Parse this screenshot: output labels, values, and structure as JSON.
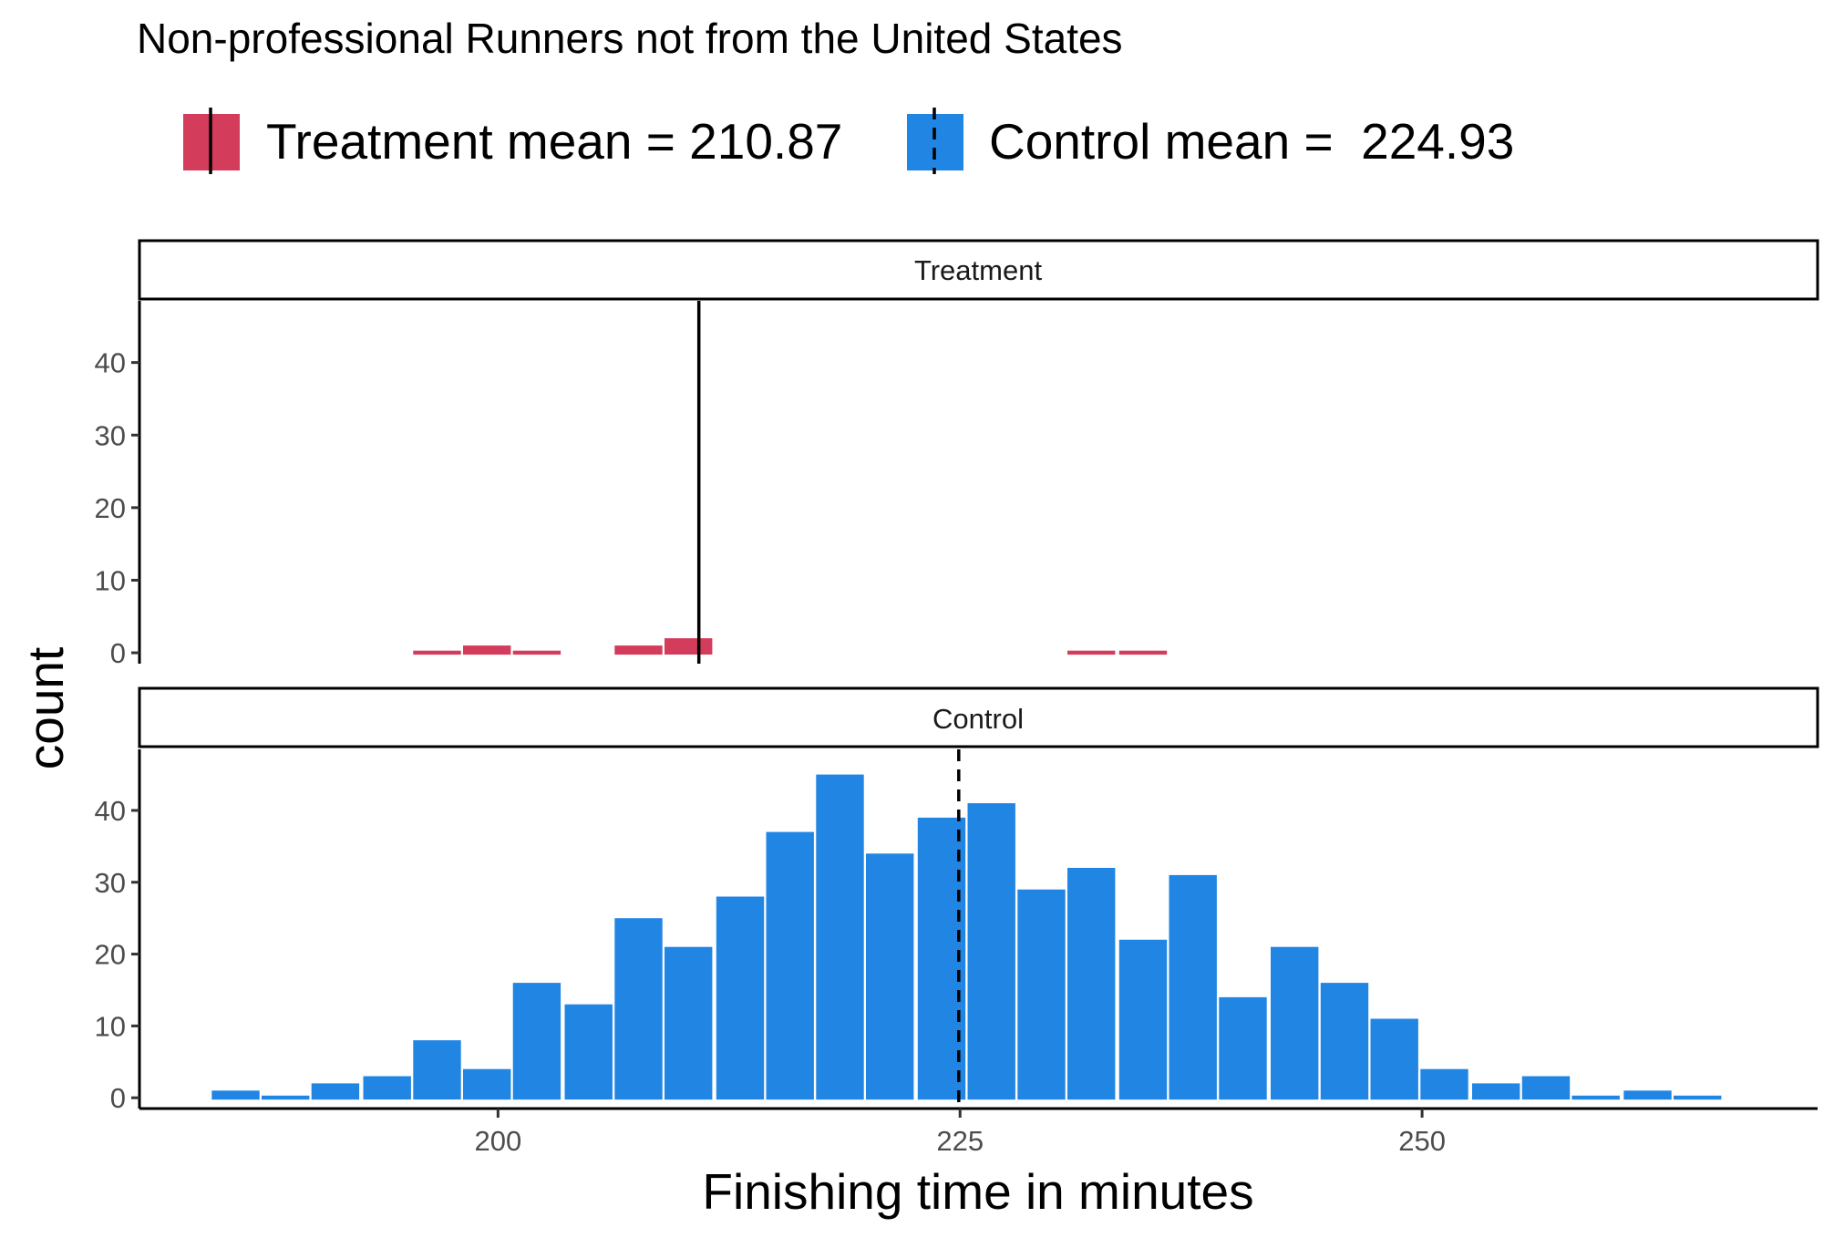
{
  "chart_data": {
    "type": "bar",
    "title": "Non-professional Runners not from the United States",
    "xlabel": "Finishing time in minutes",
    "ylabel": "count",
    "xlim": [
      180.6,
      271.4
    ],
    "ylim": [
      -1.5,
      48.5
    ],
    "x_ticks": [
      200,
      225,
      250
    ],
    "y_ticks": [
      0,
      10,
      20,
      30,
      40
    ],
    "bin_width": 2.73,
    "grid": false,
    "legend_position": "top",
    "legend": [
      {
        "label": "Treatment mean = 210.87",
        "color": "#d43c5c",
        "line": "solid"
      },
      {
        "label": "Control mean =  224.93",
        "color": "#2185e4",
        "line": "dashed"
      }
    ],
    "panels": [
      {
        "name": "Treatment",
        "color": "#d43c5c",
        "mean": 210.87,
        "mean_line": "solid",
        "bins": [
          {
            "x": 196.7,
            "count": 0.3
          },
          {
            "x": 199.4,
            "count": 1
          },
          {
            "x": 202.1,
            "count": 0.3
          },
          {
            "x": 207.6,
            "count": 1
          },
          {
            "x": 210.3,
            "count": 2
          },
          {
            "x": 232.1,
            "count": 0.3
          },
          {
            "x": 234.9,
            "count": 0.3
          }
        ]
      },
      {
        "name": "Control",
        "color": "#2185e4",
        "mean": 224.93,
        "mean_line": "dashed",
        "bins": [
          {
            "x": 185.8,
            "count": 1
          },
          {
            "x": 188.5,
            "count": 0.3
          },
          {
            "x": 191.2,
            "count": 2
          },
          {
            "x": 194.0,
            "count": 3
          },
          {
            "x": 196.7,
            "count": 8
          },
          {
            "x": 199.4,
            "count": 4
          },
          {
            "x": 202.1,
            "count": 16
          },
          {
            "x": 204.9,
            "count": 13
          },
          {
            "x": 207.6,
            "count": 25
          },
          {
            "x": 210.3,
            "count": 21
          },
          {
            "x": 213.1,
            "count": 28
          },
          {
            "x": 215.8,
            "count": 37
          },
          {
            "x": 218.5,
            "count": 45
          },
          {
            "x": 221.2,
            "count": 34
          },
          {
            "x": 224.0,
            "count": 39
          },
          {
            "x": 226.7,
            "count": 41
          },
          {
            "x": 229.4,
            "count": 29
          },
          {
            "x": 232.1,
            "count": 32
          },
          {
            "x": 234.9,
            "count": 22
          },
          {
            "x": 237.6,
            "count": 31
          },
          {
            "x": 240.3,
            "count": 14
          },
          {
            "x": 243.1,
            "count": 21
          },
          {
            "x": 245.8,
            "count": 16
          },
          {
            "x": 248.5,
            "count": 11
          },
          {
            "x": 251.2,
            "count": 4
          },
          {
            "x": 254.0,
            "count": 2
          },
          {
            "x": 256.7,
            "count": 3
          },
          {
            "x": 259.4,
            "count": 0.3
          },
          {
            "x": 262.2,
            "count": 1
          },
          {
            "x": 264.9,
            "count": 0.3
          }
        ]
      }
    ]
  }
}
